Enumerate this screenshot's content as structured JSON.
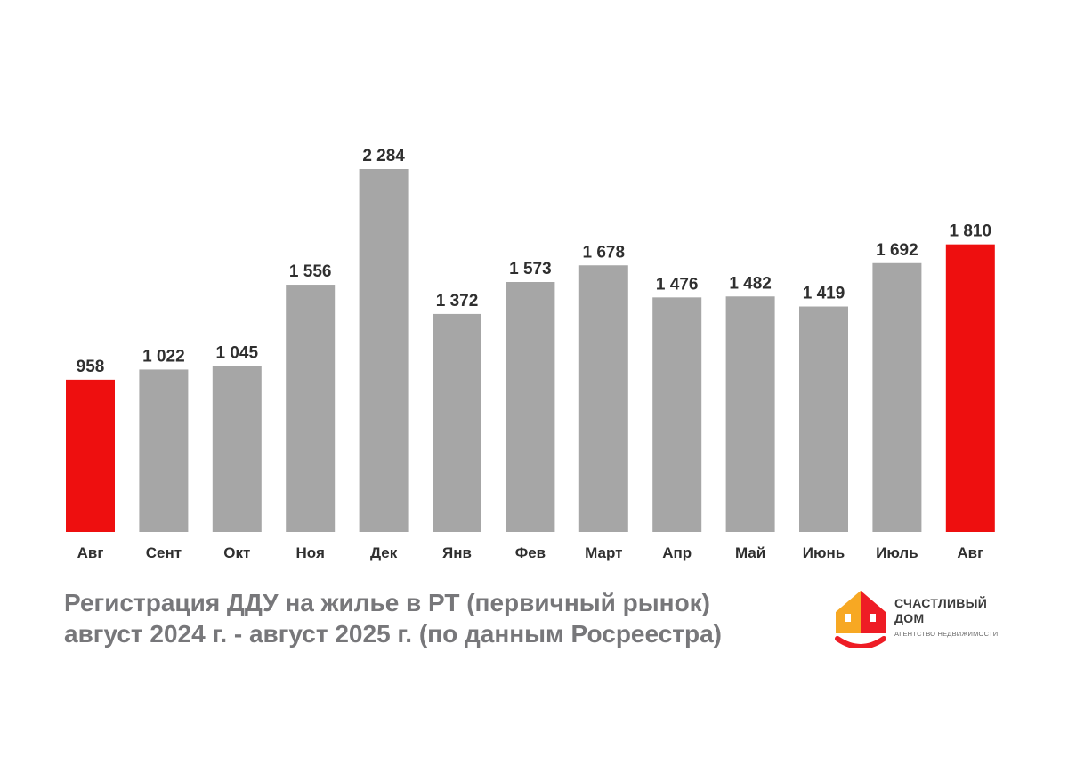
{
  "chart_data": {
    "type": "bar",
    "categories": [
      "Авг",
      "Сент",
      "Окт",
      "Ноя",
      "Дек",
      "Янв",
      "Фев",
      "Март",
      "Апр",
      "Май",
      "Июнь",
      "Июль",
      "Авг"
    ],
    "values": [
      958,
      1022,
      1045,
      1556,
      2284,
      1372,
      1573,
      1678,
      1476,
      1482,
      1419,
      1692,
      1810
    ],
    "value_labels": [
      "958",
      "1 022",
      "1 045",
      "1 556",
      "2 284",
      "1 372",
      "1 573",
      "1 678",
      "1 476",
      "1 482",
      "1 419",
      "1 692",
      "1 810"
    ],
    "highlight_indices": [
      0,
      12
    ],
    "colors": {
      "bar": "#a6a6a6",
      "highlight": "#ee0f0f",
      "text": "#2f2f2f",
      "title": "#77777a"
    },
    "title": "Регистрация ДДУ на жилье в РТ (первичный рынок)",
    "subtitle": "август 2024 г. - август 2025 г. (по данным Росреестра)",
    "grid": false,
    "legend": "none"
  },
  "logo": {
    "name_line1": "СЧАСТЛИВЫЙ",
    "name_line2": "ДОМ",
    "tagline": "АГЕНТСТВО НЕДВИЖИМОСТИ",
    "colors": {
      "roof": "#ee1c25",
      "wall": "#f7a823",
      "window": "#ffffff"
    }
  }
}
